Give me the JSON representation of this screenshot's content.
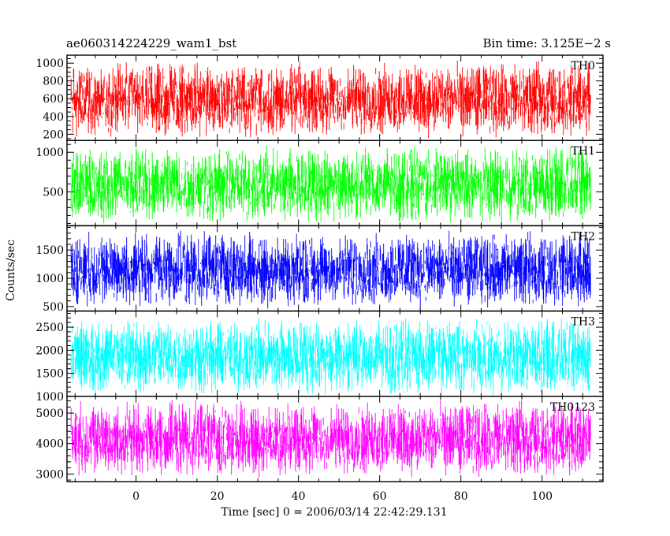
{
  "header": {
    "title": "ae060314224229_wam1_bst",
    "bin_time": "Bin time: 3.125E−2 s"
  },
  "chart_data": {
    "type": "line",
    "title": "ae060314224229_wam1_bst",
    "xlabel": "Time [sec] 0 = 2006/03/14 22:42:29.131",
    "ylabel": "Counts/sec",
    "xlim": [
      -17,
      115
    ],
    "data_x_range": [
      -16,
      112
    ],
    "x_ticks": [
      0,
      20,
      40,
      60,
      80,
      100
    ],
    "x_tick_labels": [
      "0",
      "20",
      "40",
      "60",
      "80",
      "100"
    ],
    "grid": false,
    "panels": [
      {
        "name": "TH0",
        "color": "#ff0000",
        "ylim": [
          130,
          1090
        ],
        "y_ticks": [
          200,
          400,
          600,
          800,
          1000
        ],
        "y_tick_labels": [
          "200",
          "400",
          "600",
          "800",
          "1000"
        ],
        "y_minor_step": 50,
        "mean": 590,
        "min_value": 130,
        "max_value": 1090
      },
      {
        "name": "TH1",
        "color": "#00ff00",
        "ylim": [
          70,
          1150
        ],
        "y_ticks": [
          500,
          1000
        ],
        "y_tick_labels": [
          "500",
          "1000"
        ],
        "y_minor_step": 100,
        "mean": 590,
        "min_value": 70,
        "max_value": 1150
      },
      {
        "name": "TH2",
        "color": "#0000ff",
        "ylim": [
          420,
          1930
        ],
        "y_ticks": [
          500,
          1000,
          1500
        ],
        "y_tick_labels": [
          "500",
          "1000",
          "1500"
        ],
        "y_minor_step": 100,
        "mean": 1150,
        "min_value": 420,
        "max_value": 1930
      },
      {
        "name": "TH3",
        "color": "#00ffff",
        "ylim": [
          1000,
          2850
        ],
        "y_ticks": [
          1000,
          1500,
          2000,
          2500
        ],
        "y_tick_labels": [
          "1000",
          "1500",
          "2000",
          "2500"
        ],
        "y_minor_step": 100,
        "mean": 1860,
        "min_value": 1000,
        "max_value": 2850
      },
      {
        "name": "TH0123",
        "color": "#ff00ff",
        "ylim": [
          2750,
          5550
        ],
        "y_ticks": [
          3000,
          4000,
          5000
        ],
        "y_tick_labels": [
          "3000",
          "4000",
          "5000"
        ],
        "y_minor_step": 200,
        "mean": 4150,
        "min_value": 2750,
        "max_value": 5550
      }
    ]
  }
}
